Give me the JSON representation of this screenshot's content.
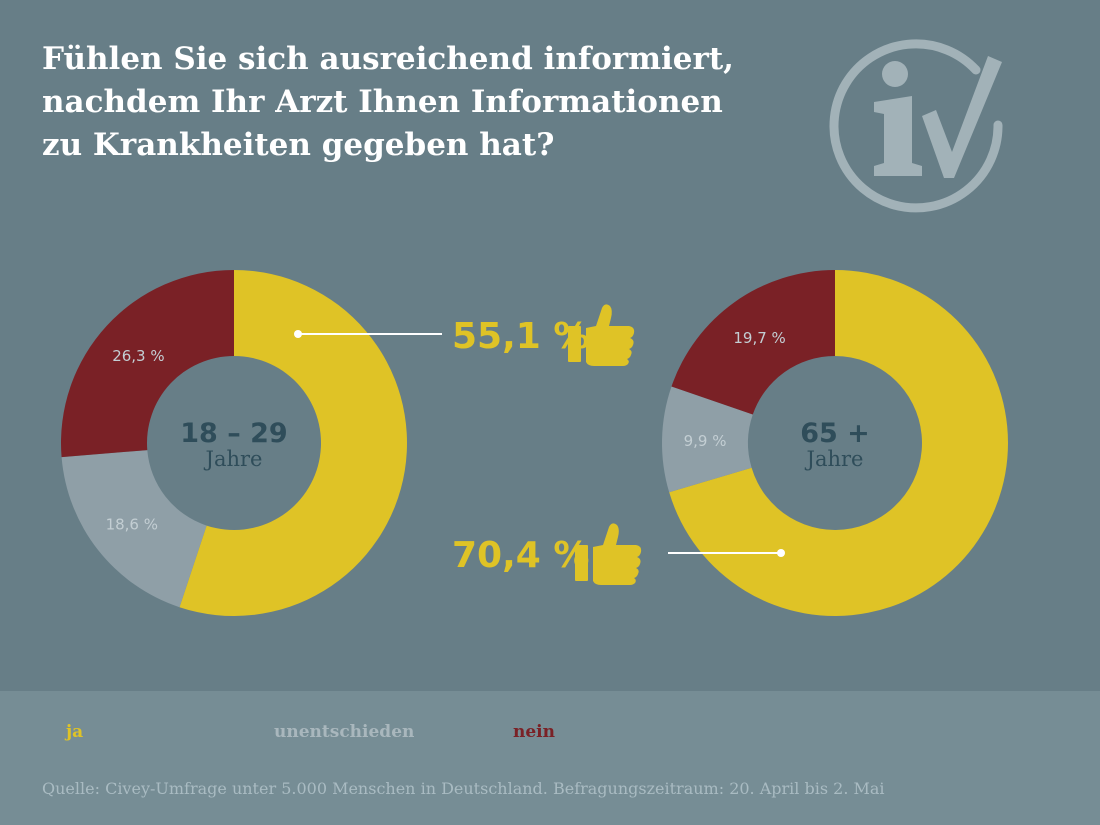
{
  "title_lines": [
    "Fühlen Sie sich ausreichend informiert,",
    "nachdem Ihr Arzt Ihnen Informationen",
    "zu Krankheiten gegeben hat?"
  ],
  "colors": {
    "background": "#677e87",
    "legend_band": "#768d95",
    "ja": "#dfc326",
    "unentschieden": "#8f9fa7",
    "nein": "#7a2126",
    "center_text": "#2f4d5a",
    "slice_label": "#c3ced3",
    "logo": "#a2b2b8"
  },
  "chart_data": [
    {
      "type": "pie",
      "variant": "donut",
      "center_label": [
        "18 – 29",
        "Jahre"
      ],
      "slices": [
        {
          "name": "ja",
          "value": 55.1,
          "label": "55,1 %"
        },
        {
          "name": "unentschieden",
          "value": 18.6,
          "label": "18,6 %"
        },
        {
          "name": "nein",
          "value": 26.3,
          "label": "26,3 %"
        }
      ],
      "callout": {
        "slice": "ja",
        "text": "55,1 %"
      }
    },
    {
      "type": "pie",
      "variant": "donut",
      "center_label": [
        "65 +",
        "Jahre"
      ],
      "slices": [
        {
          "name": "ja",
          "value": 70.4,
          "label": "70,4 %"
        },
        {
          "name": "unentschieden",
          "value": 9.9,
          "label": "9,9 %"
        },
        {
          "name": "nein",
          "value": 19.7,
          "label": "19,7 %"
        }
      ],
      "callout": {
        "slice": "ja",
        "text": "70,4 %"
      }
    }
  ],
  "legend": [
    {
      "name": "ja",
      "label": "ja"
    },
    {
      "name": "unentschieden",
      "label": "unentschieden"
    },
    {
      "name": "nein",
      "label": "nein"
    }
  ],
  "source": "Quelle: Civey-Umfrage unter 5.000 Menschen in Deutschland. Befragungszeitraum: 20. April bis 2. Mai"
}
